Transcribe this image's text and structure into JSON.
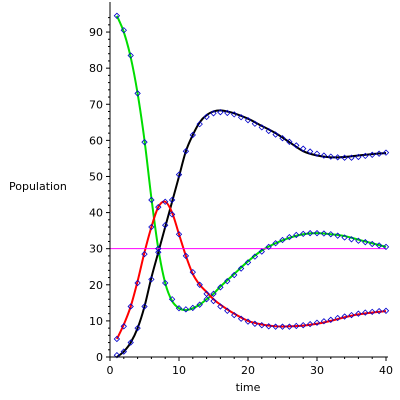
{
  "chart_data": {
    "type": "line",
    "title": "",
    "xlabel": "time",
    "ylabel": "Population",
    "xlim": [
      0,
      40
    ],
    "ylim": [
      0,
      95
    ],
    "xticks": [
      0,
      10,
      20,
      30,
      40
    ],
    "yticks": [
      0,
      10,
      20,
      30,
      40,
      50,
      60,
      70,
      80,
      90
    ],
    "grid": false,
    "legend": "none",
    "series": [
      {
        "color": "#00dd00",
        "style": "line",
        "x": [
          1,
          2,
          3,
          4,
          5,
          6,
          7,
          8,
          9,
          10,
          11,
          12,
          13,
          14,
          15,
          16,
          18,
          20,
          22,
          24,
          26,
          28,
          30,
          32,
          34,
          36,
          38,
          40
        ],
        "values": [
          94.5,
          90,
          83,
          73,
          60,
          44,
          30,
          20.5,
          15.5,
          13.5,
          13,
          13.5,
          14.5,
          16,
          17.5,
          19.5,
          23,
          26.5,
          29.5,
          31.5,
          33,
          34,
          34.3,
          34,
          33.5,
          32.5,
          31.5,
          30.5
        ]
      },
      {
        "color": "#000000",
        "style": "line",
        "x": [
          1,
          2,
          3,
          4,
          5,
          6,
          7,
          8,
          9,
          10,
          11,
          12,
          13,
          14,
          15,
          16,
          17,
          18,
          20,
          22,
          24,
          26,
          28,
          30,
          32,
          34,
          36,
          38,
          40
        ],
        "values": [
          0,
          1.5,
          4,
          8,
          14,
          22,
          29,
          36,
          43,
          50,
          57,
          61.5,
          65,
          67,
          68,
          68.3,
          68,
          67.5,
          66,
          64,
          62,
          59.5,
          57,
          55.8,
          55.3,
          55.4,
          55.8,
          56.2,
          56.5
        ]
      },
      {
        "color": "#ff0000",
        "style": "line",
        "x": [
          1,
          2,
          3,
          4,
          5,
          6,
          7,
          8,
          9,
          10,
          11,
          12,
          13,
          14,
          15,
          16,
          18,
          20,
          22,
          24,
          26,
          28,
          30,
          32,
          34,
          36,
          38,
          40
        ],
        "values": [
          5,
          9,
          14,
          21,
          29,
          36,
          41.5,
          43,
          40,
          34,
          28,
          23,
          20,
          18,
          16,
          14.5,
          12,
          10,
          9,
          8.5,
          8.5,
          8.7,
          9.2,
          10,
          11,
          11.8,
          12.3,
          12.7
        ]
      },
      {
        "color": "#ff00ff",
        "style": "line",
        "x": [
          0,
          40
        ],
        "values": [
          30,
          30
        ]
      },
      {
        "color": "#0000cc",
        "style": "markers",
        "x": [
          1,
          2,
          3,
          4,
          5,
          6,
          7,
          8,
          9,
          10,
          11,
          12,
          13,
          14,
          15,
          16,
          17,
          18,
          19,
          20,
          21,
          22,
          23,
          24,
          25,
          26,
          27,
          28,
          29,
          30,
          31,
          32,
          33,
          34,
          35,
          36,
          37,
          38,
          39,
          40
        ],
        "values": [
          94.5,
          90.5,
          83.5,
          73,
          59.5,
          43.5,
          30,
          20.5,
          16,
          13.5,
          13.2,
          13.6,
          14.5,
          16,
          17.5,
          19.3,
          21,
          22.7,
          24.5,
          26.2,
          27.8,
          29.2,
          30.5,
          31.5,
          32.4,
          33.2,
          33.8,
          34.1,
          34.3,
          34.3,
          34.2,
          34,
          33.6,
          33.1,
          32.6,
          32.2,
          31.8,
          31.3,
          30.9,
          30.5
        ]
      },
      {
        "color": "#0000cc",
        "style": "markers",
        "x": [
          1,
          2,
          3,
          4,
          5,
          6,
          7,
          8,
          9,
          10,
          11,
          12,
          13,
          14,
          15,
          16,
          17,
          18,
          19,
          20,
          21,
          22,
          23,
          24,
          25,
          26,
          27,
          28,
          29,
          30,
          31,
          32,
          33,
          34,
          35,
          36,
          37,
          38,
          39,
          40
        ],
        "values": [
          0.5,
          1.5,
          4,
          8,
          14,
          21.5,
          29,
          36.5,
          43.5,
          50.5,
          57,
          61.5,
          64.5,
          66.5,
          67.5,
          67.8,
          67.6,
          67.2,
          66.4,
          65.6,
          64.6,
          63.6,
          62.6,
          61.6,
          60.6,
          59.6,
          58.6,
          57.7,
          56.9,
          56.3,
          55.8,
          55.5,
          55.3,
          55.2,
          55.2,
          55.4,
          55.7,
          56,
          56.3,
          56.6
        ]
      },
      {
        "color": "#0000cc",
        "style": "markers",
        "x": [
          1,
          2,
          3,
          4,
          5,
          6,
          7,
          8,
          9,
          10,
          11,
          12,
          13,
          14,
          15,
          16,
          17,
          18,
          19,
          20,
          21,
          22,
          23,
          24,
          25,
          26,
          27,
          28,
          29,
          30,
          31,
          32,
          33,
          34,
          35,
          36,
          37,
          38,
          39,
          40
        ],
        "values": [
          5,
          8.5,
          14,
          20.5,
          28.5,
          36,
          41.5,
          43,
          39.5,
          34,
          28,
          23.5,
          20,
          17.5,
          15.5,
          14,
          12.8,
          11.6,
          10.6,
          9.8,
          9.2,
          8.8,
          8.5,
          8.4,
          8.4,
          8.4,
          8.6,
          8.8,
          9.1,
          9.5,
          9.9,
          10.3,
          10.8,
          11.2,
          11.6,
          12,
          12.3,
          12.5,
          12.7,
          12.8
        ]
      }
    ]
  }
}
